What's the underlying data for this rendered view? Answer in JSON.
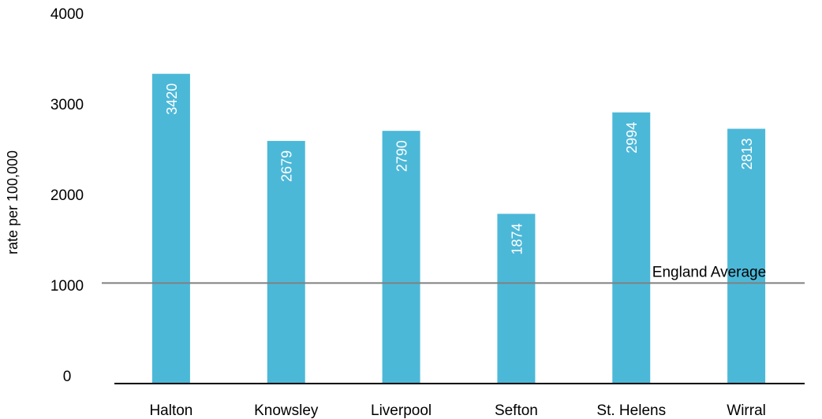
{
  "chart_data": {
    "type": "bar",
    "categories": [
      "Halton",
      "Knowsley",
      "Liverpool",
      "Sefton",
      "St. Helens",
      "Wirral"
    ],
    "values": [
      3420,
      2679,
      2790,
      1874,
      2994,
      2813
    ],
    "ylabel": "rate per 100,000",
    "ylim": [
      0,
      4000
    ],
    "yticks": [
      0,
      1000,
      2000,
      3000,
      4000
    ],
    "grid": false,
    "reference_line": {
      "label": "England Average",
      "value": 1110,
      "color": "#808080"
    },
    "colors": {
      "bar": "#4cb8d8",
      "bar_label": "#ffffff",
      "axis": "#000000"
    }
  }
}
